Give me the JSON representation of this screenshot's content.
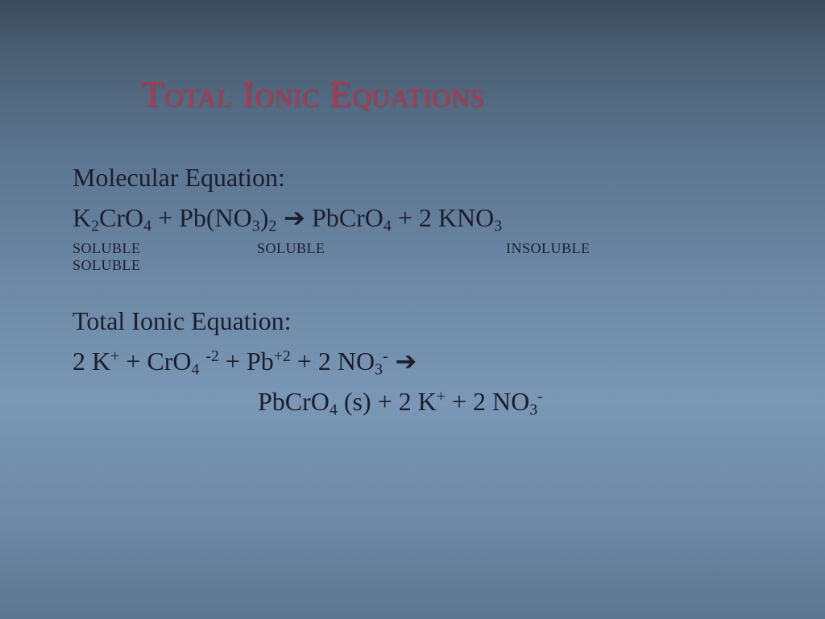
{
  "title": "Total Ionic Equations",
  "labels": {
    "molecular": "Molecular Equation:",
    "totalIonic": "Total Ionic Equation:",
    "soluble": "SOLUBLE",
    "insoluble": "INSOLUBLE"
  },
  "eq": {
    "mol": {
      "r1": "K",
      "r1s": "2",
      "r1b": "CrO",
      "r1bs": "4",
      "plus1": "  +  ",
      "r2": "Pb(NO",
      "r2s": "3",
      "r2c": ")",
      "r2cs": "2",
      "arrow": "  ➔",
      "gap": "        ",
      "p1": "PbCrO",
      "p1s": "4",
      "plus2": "   +  2 ",
      "p2": "KNO",
      "p2s": "3"
    },
    "ionic1": {
      "a": "2 K",
      "asup": "+",
      "plus1": " + ",
      "b": "CrO",
      "bsub": "4",
      "bsp": " ",
      "bsup": "-2",
      "plus2": " + ",
      "c": "Pb",
      "csup": "+2",
      "plus3": " + 2 ",
      "d": "NO",
      "dsub": "3",
      "dsup": "-",
      "arrow": "  ➔"
    },
    "ionic2": {
      "a": "PbCrO",
      "asub": "4",
      "astate": " (s)",
      "plus1": " + 2 ",
      "b": "K",
      "bsup": "+",
      "plus2": " + 2 ",
      "c": "NO",
      "csub": "3",
      "csup": "-"
    }
  },
  "colors": {
    "title": "#b8344a",
    "text": "#1a1f2e",
    "bg_top": "#3a4a5a",
    "bg_mid": "#7a97b5"
  },
  "typography": {
    "title_fontsize": 46,
    "body_fontsize": 32,
    "label_fontsize": 18,
    "font_family": "Times New Roman"
  }
}
